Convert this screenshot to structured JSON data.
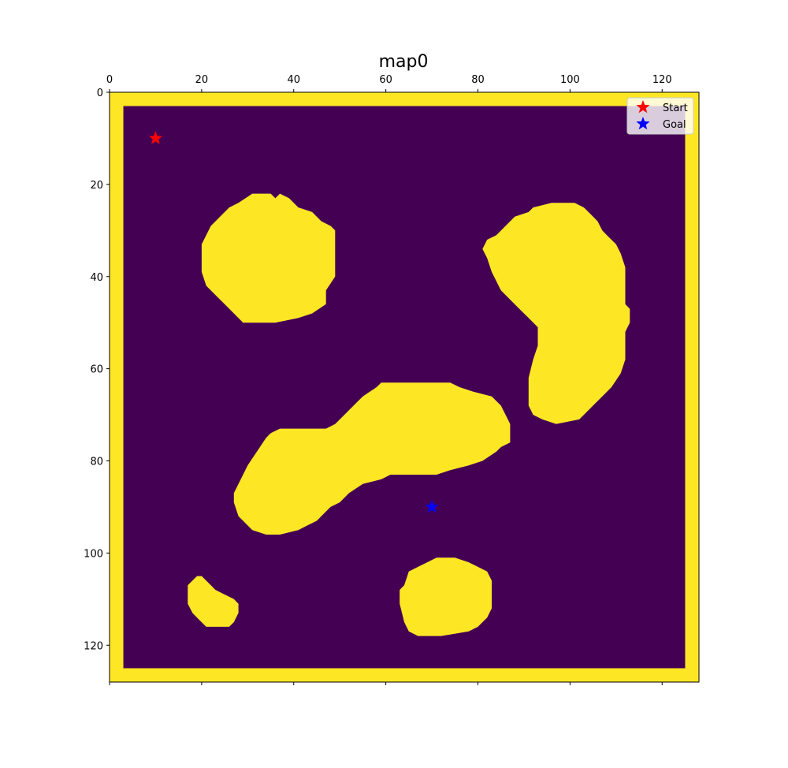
{
  "chart_data": {
    "type": "heatmap",
    "title": "map0",
    "grid_size": [
      128,
      128
    ],
    "x_axis": {
      "position": "top",
      "range": [
        0,
        128
      ],
      "ticks": [
        0,
        20,
        40,
        60,
        80,
        100,
        120
      ],
      "tick_labels": [
        "0",
        "20",
        "40",
        "60",
        "80",
        "100",
        "120"
      ]
    },
    "y_axis": {
      "inverted": true,
      "range": [
        0,
        128
      ],
      "ticks": [
        0,
        20,
        40,
        60,
        80,
        100,
        120
      ],
      "tick_labels": [
        "0",
        "20",
        "40",
        "60",
        "80",
        "100",
        "120"
      ]
    },
    "grid": false,
    "colors": {
      "free": "#440154",
      "obstacle": "#fde725"
    },
    "border_thickness_cells": 3,
    "obstacles": [
      {
        "name": "top-left-blob",
        "polygon": [
          [
            20,
            39
          ],
          [
            20,
            33
          ],
          [
            21,
            31
          ],
          [
            22,
            29
          ],
          [
            24,
            27
          ],
          [
            26,
            25
          ],
          [
            28,
            24
          ],
          [
            31,
            22
          ],
          [
            35,
            22
          ],
          [
            36,
            23
          ],
          [
            37,
            22
          ],
          [
            39,
            23
          ],
          [
            41,
            25
          ],
          [
            44,
            26
          ],
          [
            46,
            28
          ],
          [
            48,
            29
          ],
          [
            49,
            30
          ],
          [
            49,
            40
          ],
          [
            47,
            43
          ],
          [
            47,
            46
          ],
          [
            44,
            48
          ],
          [
            41,
            49
          ],
          [
            36,
            50
          ],
          [
            29,
            50
          ],
          [
            25,
            46
          ],
          [
            23,
            44
          ],
          [
            21,
            42
          ]
        ]
      },
      {
        "name": "right-crescent",
        "polygon": [
          [
            81,
            34
          ],
          [
            82,
            32
          ],
          [
            84,
            31
          ],
          [
            86,
            29
          ],
          [
            88,
            27
          ],
          [
            91,
            26
          ],
          [
            92,
            25
          ],
          [
            96,
            24
          ],
          [
            101,
            24
          ],
          [
            103,
            25
          ],
          [
            104,
            26
          ],
          [
            106,
            28
          ],
          [
            107,
            30
          ],
          [
            108,
            31
          ],
          [
            110,
            33
          ],
          [
            111,
            35
          ],
          [
            112,
            38
          ],
          [
            112,
            46
          ],
          [
            113,
            47
          ],
          [
            113,
            50
          ],
          [
            112,
            52
          ],
          [
            112,
            58
          ],
          [
            111,
            61
          ],
          [
            109,
            64
          ],
          [
            107,
            66
          ],
          [
            105,
            68
          ],
          [
            103,
            70
          ],
          [
            102,
            71
          ],
          [
            97,
            72
          ],
          [
            94,
            71
          ],
          [
            92,
            70
          ],
          [
            91,
            68
          ],
          [
            91,
            62
          ],
          [
            92,
            58
          ],
          [
            93,
            55
          ],
          [
            93,
            51
          ],
          [
            91,
            49
          ],
          [
            89,
            47
          ],
          [
            87,
            45
          ],
          [
            85,
            43
          ],
          [
            83,
            39
          ],
          [
            82,
            36
          ]
        ]
      },
      {
        "name": "center-bean",
        "polygon": [
          [
            27,
            87
          ],
          [
            28,
            85
          ],
          [
            30,
            81
          ],
          [
            32,
            78
          ],
          [
            34,
            75
          ],
          [
            35,
            74
          ],
          [
            37,
            73
          ],
          [
            47,
            73
          ],
          [
            49,
            72
          ],
          [
            51,
            70
          ],
          [
            53,
            68
          ],
          [
            55,
            66
          ],
          [
            58,
            64
          ],
          [
            59,
            63
          ],
          [
            64,
            63
          ],
          [
            74,
            63
          ],
          [
            76,
            64
          ],
          [
            79,
            65
          ],
          [
            83,
            66
          ],
          [
            85,
            68
          ],
          [
            86,
            70
          ],
          [
            87,
            72
          ],
          [
            87,
            76
          ],
          [
            85,
            77
          ],
          [
            84,
            78
          ],
          [
            81,
            80
          ],
          [
            78,
            81
          ],
          [
            74,
            82
          ],
          [
            71,
            83
          ],
          [
            67,
            83
          ],
          [
            61,
            83
          ],
          [
            59,
            84
          ],
          [
            55,
            85
          ],
          [
            52,
            87
          ],
          [
            50,
            89
          ],
          [
            48,
            90
          ],
          [
            46,
            92
          ],
          [
            45,
            93
          ],
          [
            43,
            94
          ],
          [
            41,
            95
          ],
          [
            37,
            96
          ],
          [
            34,
            96
          ],
          [
            31,
            95
          ],
          [
            29,
            93
          ],
          [
            28,
            92
          ],
          [
            27,
            89
          ]
        ]
      },
      {
        "name": "bottom-center-blob",
        "polygon": [
          [
            63,
            111
          ],
          [
            63,
            108
          ],
          [
            64,
            107
          ],
          [
            65,
            104
          ],
          [
            67,
            103
          ],
          [
            69,
            102
          ],
          [
            71,
            101
          ],
          [
            75,
            101
          ],
          [
            78,
            102
          ],
          [
            80,
            103
          ],
          [
            82,
            104
          ],
          [
            83,
            106
          ],
          [
            83,
            112
          ],
          [
            82,
            114
          ],
          [
            80,
            116
          ],
          [
            78,
            117
          ],
          [
            72,
            118
          ],
          [
            67,
            118
          ],
          [
            65,
            117
          ],
          [
            64,
            115
          ]
        ]
      },
      {
        "name": "bottom-left-blob",
        "polygon": [
          [
            17,
            108
          ],
          [
            17,
            107
          ],
          [
            18,
            106
          ],
          [
            19,
            105
          ],
          [
            20,
            105
          ],
          [
            21,
            106
          ],
          [
            22,
            107
          ],
          [
            23,
            108
          ],
          [
            25,
            109
          ],
          [
            27,
            110
          ],
          [
            28,
            111
          ],
          [
            28,
            113
          ],
          [
            27,
            115
          ],
          [
            26,
            116
          ],
          [
            21,
            116
          ],
          [
            19,
            114
          ],
          [
            18,
            113
          ],
          [
            17,
            111
          ]
        ]
      }
    ],
    "markers": [
      {
        "label": "Start",
        "x": 10,
        "y": 10,
        "color": "#ff0000",
        "shape": "star"
      },
      {
        "label": "Goal",
        "x": 70,
        "y": 90,
        "color": "#0000ff",
        "shape": "star"
      }
    ],
    "legend": {
      "placement": "top-right",
      "entries": [
        {
          "label": "Start",
          "color": "#ff0000",
          "marker": "star"
        },
        {
          "label": "Goal",
          "color": "#0000ff",
          "marker": "star"
        }
      ]
    }
  }
}
